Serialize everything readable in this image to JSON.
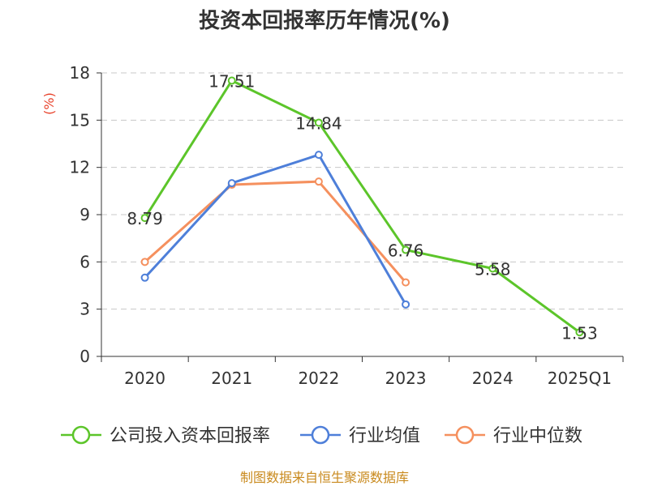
{
  "chart_data": {
    "type": "line",
    "title": "投资本回报率历年情况(%)",
    "ylabel": "(%)",
    "xlabel": "",
    "categories": [
      "2020",
      "2021",
      "2022",
      "2023",
      "2024",
      "2025Q1"
    ],
    "ylim": [
      0,
      18
    ],
    "yticks": [
      0,
      3,
      6,
      9,
      12,
      15,
      18
    ],
    "grid": true,
    "legend_position": "bottom",
    "series": [
      {
        "name": "公司投入资本回报率",
        "color": "#5cc52a",
        "values": [
          8.79,
          17.51,
          14.84,
          6.76,
          5.58,
          1.53
        ],
        "labels": [
          "8.79",
          "17.51",
          "14.84",
          "6.76",
          "5.58",
          "1.53"
        ]
      },
      {
        "name": "行业均值",
        "color": "#4e7fd9",
        "values": [
          5.0,
          11.0,
          12.8,
          3.3,
          null,
          null
        ]
      },
      {
        "name": "行业中位数",
        "color": "#f5905e",
        "values": [
          6.0,
          10.9,
          11.1,
          4.7,
          null,
          null
        ]
      }
    ],
    "source": "制图数据来自恒生聚源数据库"
  }
}
